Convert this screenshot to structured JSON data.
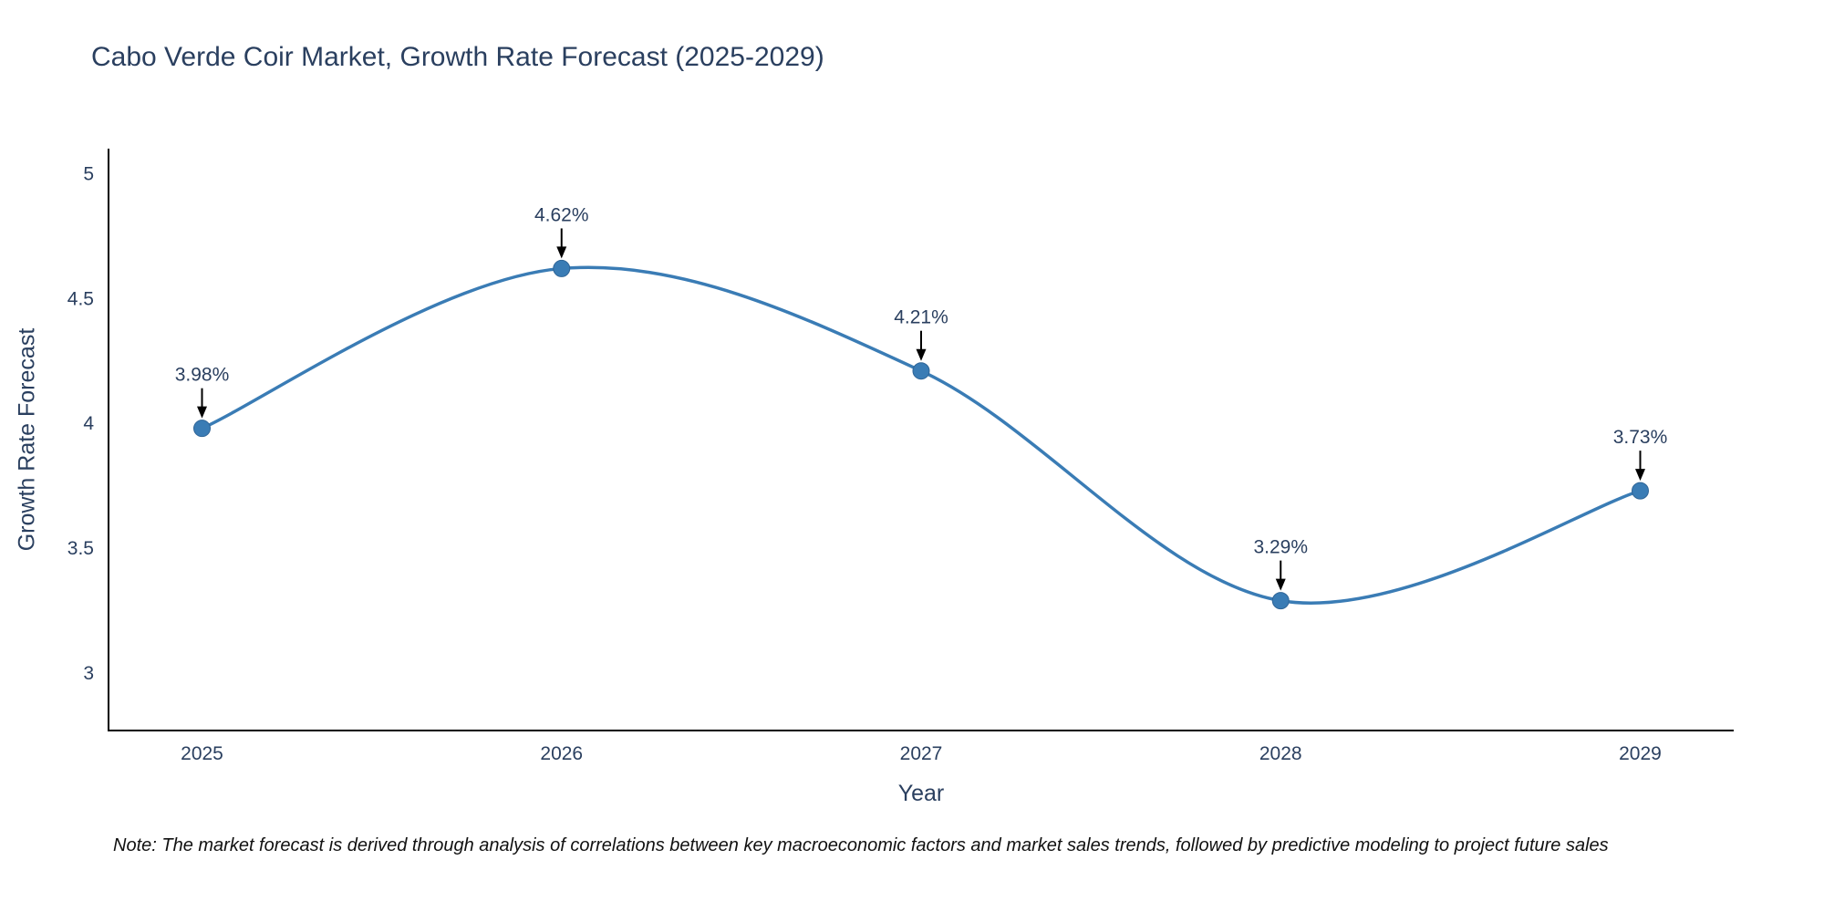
{
  "chart_data": {
    "type": "line",
    "title": "Cabo Verde Coir Market, Growth Rate Forecast (2025-2029)",
    "xlabel": "Year",
    "ylabel": "Growth Rate Forecast",
    "x": [
      2025,
      2026,
      2027,
      2028,
      2029
    ],
    "values": [
      3.98,
      4.62,
      4.21,
      3.29,
      3.73
    ],
    "point_labels": [
      "3.98%",
      "4.62%",
      "4.21%",
      "3.29%",
      "3.73%"
    ],
    "x_tick_labels": [
      "2025",
      "2026",
      "2027",
      "2028",
      "2029"
    ],
    "y_ticks": [
      3,
      3.5,
      4,
      4.5,
      5
    ],
    "y_tick_labels": [
      "3",
      "3.5",
      "4",
      "4.5",
      "5"
    ],
    "xlim": [
      2024.74,
      2029.26
    ],
    "ylim": [
      2.77,
      5.1
    ],
    "line_shape": "spline",
    "grid": false,
    "legend": "none",
    "colors": {
      "line": "#3a7cb5",
      "marker": "#3a7cb5",
      "marker_edge": "#2f6496",
      "axis": "#000000",
      "text": "#2a3f5f",
      "annotation_arrow": "#000000"
    }
  },
  "note": {
    "text": "Note: The market forecast is derived through analysis of correlations between key macroeconomic factors and market sales trends, followed by predictive modeling to project future sales"
  }
}
